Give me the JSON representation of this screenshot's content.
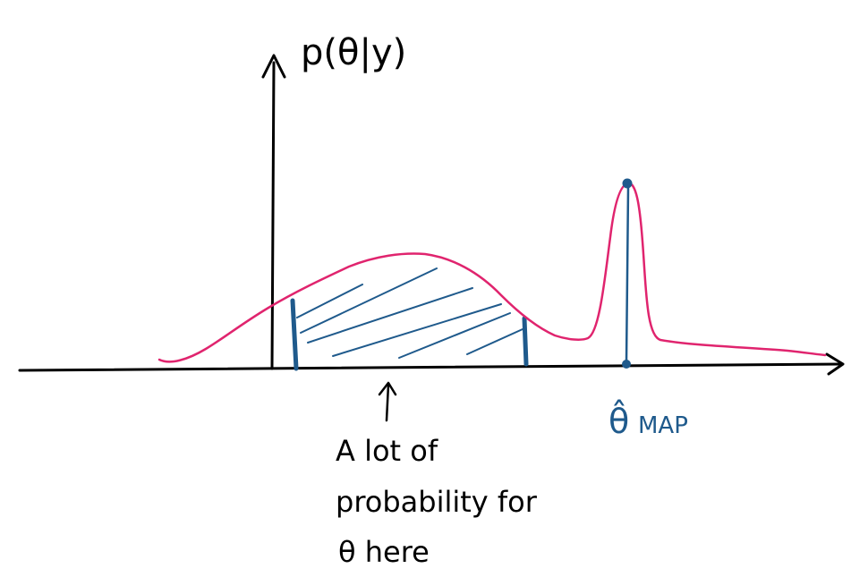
{
  "axes": {
    "y_label": "p(θ|y)"
  },
  "annotations": {
    "map_label": "θ̂",
    "map_subscript": "MAP",
    "note_line1": "A lot of",
    "note_line2": "probability for",
    "note_line3": "θ here"
  },
  "colors": {
    "ink": "#000000",
    "density_curve": "#e0246e",
    "highlight": "#1f5a8c"
  }
}
